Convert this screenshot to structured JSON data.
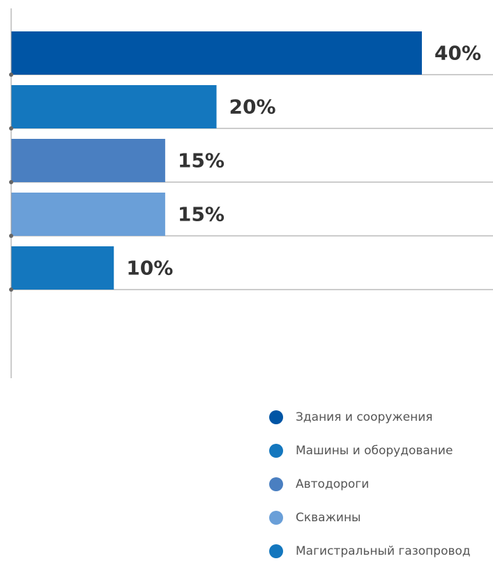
{
  "chart_data": {
    "type": "bar",
    "orientation": "horizontal",
    "categories": [
      "Здания и сооружения",
      "Машины и оборудование",
      "Автодороги",
      "Скважины",
      "Магистральный газопровод"
    ],
    "values": [
      40,
      20,
      15,
      15,
      10
    ],
    "value_labels": [
      "40%",
      "20%",
      "15%",
      "15%",
      "10%"
    ],
    "colors": [
      "#0055a5",
      "#1477be",
      "#4a7fc1",
      "#6a9fd8",
      "#1477be"
    ],
    "xlim": [
      0,
      40
    ],
    "grid": true,
    "legend_position": "bottom-right"
  }
}
